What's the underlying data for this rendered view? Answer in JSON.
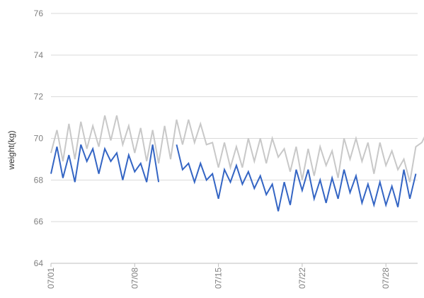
{
  "chart_data": {
    "type": "line",
    "title": "",
    "xlabel": "",
    "ylabel": "weight(kg)",
    "ylim": [
      64,
      76
    ],
    "yticks": [
      64,
      66,
      68,
      70,
      72,
      74,
      76
    ],
    "grid": "horizontal",
    "x_start": "07/01",
    "x_tick_labels": [
      "07/01",
      "07/08",
      "07/15",
      "07/22",
      "07/28"
    ],
    "x_tick_index": [
      0,
      14,
      28,
      42,
      56
    ],
    "series": [
      {
        "color": "#c8c8c8",
        "values": [
          69.3,
          70.4,
          68.9,
          70.7,
          69.0,
          70.8,
          69.5,
          70.6,
          69.6,
          71.1,
          69.9,
          71.1,
          69.7,
          70.6,
          69.3,
          70.5,
          68.9,
          70.4,
          68.8,
          70.6,
          69.0,
          70.9,
          69.7,
          70.9,
          69.8,
          70.7,
          69.7,
          69.8,
          68.6,
          69.8,
          68.6,
          69.6,
          68.6,
          70.0,
          68.9,
          70.0,
          68.8,
          70.0,
          69.1,
          69.5,
          68.4,
          69.6,
          68.0,
          69.5,
          68.2,
          69.6,
          68.7,
          69.4,
          68.1,
          70.0,
          69.0,
          70.0,
          68.9,
          69.8,
          68.3,
          69.8,
          68.7,
          69.4,
          68.5,
          69.0,
          67.9,
          69.6,
          69.8,
          70.4
        ]
      },
      {
        "color": "#3465c4",
        "values": [
          68.3,
          69.6,
          68.1,
          69.2,
          67.9,
          69.7,
          68.9,
          69.5,
          68.3,
          69.5,
          68.9,
          69.3,
          68.0,
          69.2,
          68.4,
          68.8,
          67.9,
          69.7,
          67.9,
          null,
          null,
          69.7,
          68.5,
          68.8,
          67.9,
          68.8,
          68.0,
          68.3,
          67.1,
          68.5,
          67.9,
          68.7,
          67.8,
          68.4,
          67.6,
          68.2,
          67.3,
          67.8,
          66.5,
          67.9,
          66.8,
          68.5,
          67.5,
          68.5,
          67.1,
          68.0,
          66.9,
          68.1,
          67.1,
          68.5,
          67.4,
          68.2,
          66.9,
          67.8,
          66.8,
          67.9,
          66.8,
          67.7,
          66.7,
          68.5,
          67.1,
          68.3
        ]
      }
    ]
  }
}
